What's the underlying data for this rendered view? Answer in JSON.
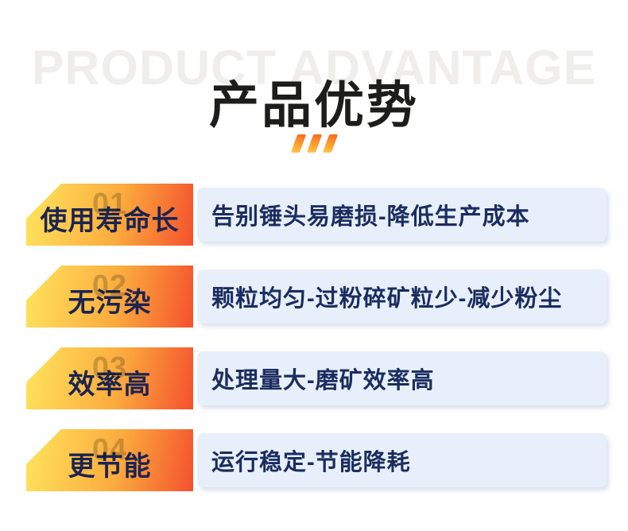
{
  "header": {
    "watermark": "PRODUCT ADVANTAGE",
    "title": "产品优势"
  },
  "decoration": {
    "slash_count": 3,
    "slash_color_top": "#f8701f",
    "slash_color_bottom": "#ffc845"
  },
  "colors": {
    "badge_gradient_left": "#ffe45c",
    "badge_gradient_right": "#f4512d",
    "badge_text": "#1c2450",
    "description_box_bg": "#e7effa",
    "description_text": "#1b2c5f",
    "watermark_text": "#efeeec",
    "title_text": "#1d1d1b"
  },
  "advantages": [
    {
      "number": "01",
      "badge": "使用寿命长",
      "description": "告别锤头易磨损-降低生产成本"
    },
    {
      "number": "02",
      "badge": "无污染",
      "description": "颗粒均匀-过粉碎矿粒少-减少粉尘"
    },
    {
      "number": "03",
      "badge": "效率高",
      "description": "处理量大-磨矿效率高"
    },
    {
      "number": "04",
      "badge": "更节能",
      "description": "运行稳定-节能降耗"
    }
  ]
}
